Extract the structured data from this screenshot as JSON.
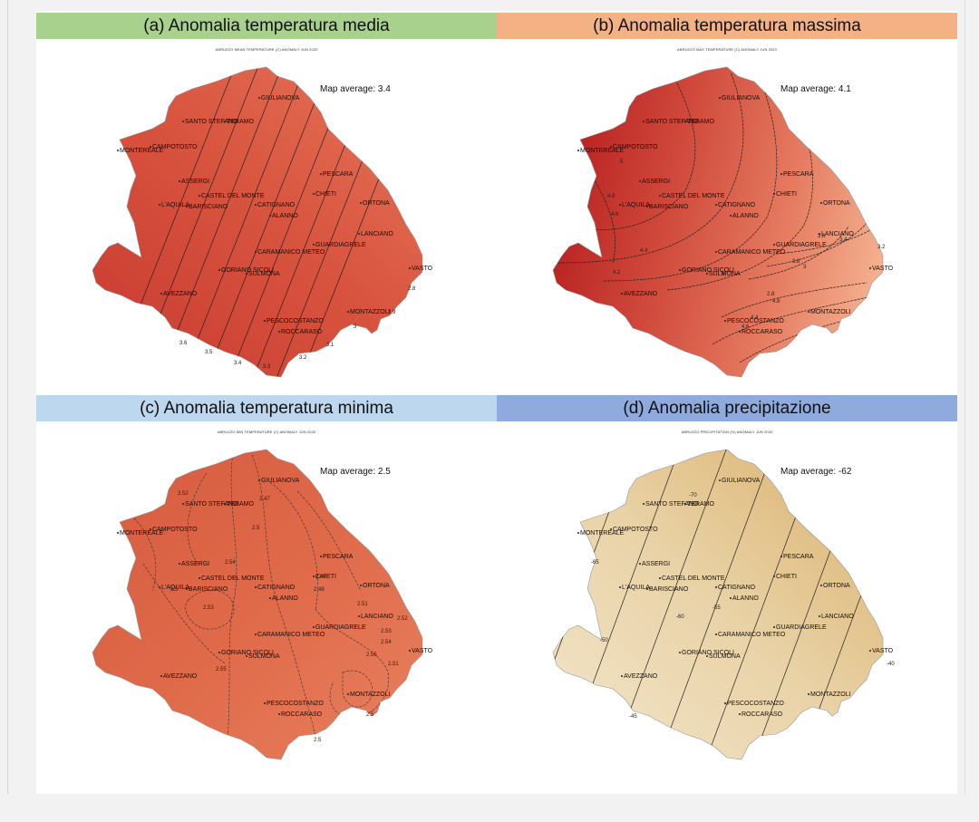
{
  "panels": [
    {
      "id": "a",
      "header": "(a) Anomalia temperatura media",
      "header_color": "#a9d18e",
      "subtitle": "ABRUZZO MEAN TEMPERATURE (C) ANOMALY JUN 2020",
      "map_average": "Map average: 3.4",
      "contour_labels": [
        "3.6",
        "3.5",
        "3.4",
        "3.3",
        "3.2",
        "3.1",
        "3",
        "2.9",
        "2.8"
      ]
    },
    {
      "id": "b",
      "header": "(b) Anomalia temperatura massima",
      "header_color": "#f4b183",
      "subtitle": "ABRUZZO MAX TEMPERATURE (C) ANOMALY JUN 2020",
      "map_average": "Map average: 4.1",
      "contour_labels": [
        "5",
        "4.8",
        "4.6",
        "4.4",
        "4.2",
        "4",
        "3.8",
        "3.6",
        "3.4",
        "3.2",
        "3",
        "2.8",
        "4.8",
        "4.6",
        "4.4"
      ]
    },
    {
      "id": "c",
      "header": "(c) Anomalia temperatura minima",
      "header_color": "#bdd7ee",
      "subtitle": "ABRUZZO MIN TEMPERATURE (C) ANOMALY JUN 2020",
      "map_average": "Map average: 2.5",
      "contour_labels": [
        "2.52",
        "2.47",
        "2.5",
        "2.54",
        "2.5",
        "2.53",
        "2.47",
        "2.48",
        "2.51",
        "2.52",
        "2.53",
        "2.54",
        "2.55",
        "2.51",
        "2.55",
        "2.5",
        "2.5"
      ]
    },
    {
      "id": "d",
      "header": "(d) Anomalia precipitazione",
      "header_color": "#8faadc",
      "subtitle": "ABRUZZO PRECIPITATION (%) ANOMALY JUN 2020",
      "map_average": "Map average: -62",
      "contour_labels": [
        "-70",
        "-65",
        "-60",
        "-55",
        "-50",
        "-45",
        "-40"
      ]
    }
  ],
  "cities": [
    "GIULIANOVA",
    "SANTO STEFANO",
    "TERAMO",
    "MONTEREALE",
    "CAMPOTOSTO",
    "PESCARA",
    "ASSERGI",
    "CASTEL DEL MONTE",
    "CHIETI",
    "L'AQUILA",
    "BARISCIANO",
    "CATIGNANO",
    "ORTONA",
    "ALANNO",
    "LANCIANO",
    "GUARDIAGRELE",
    "CARAMANICO METEO",
    "VASTO",
    "GORIANO SICOLI",
    "SULMONA",
    "AVEZZANO",
    "MONTAZZOLI",
    "PESCOCOSTANZO",
    "ROCCARASO"
  ]
}
